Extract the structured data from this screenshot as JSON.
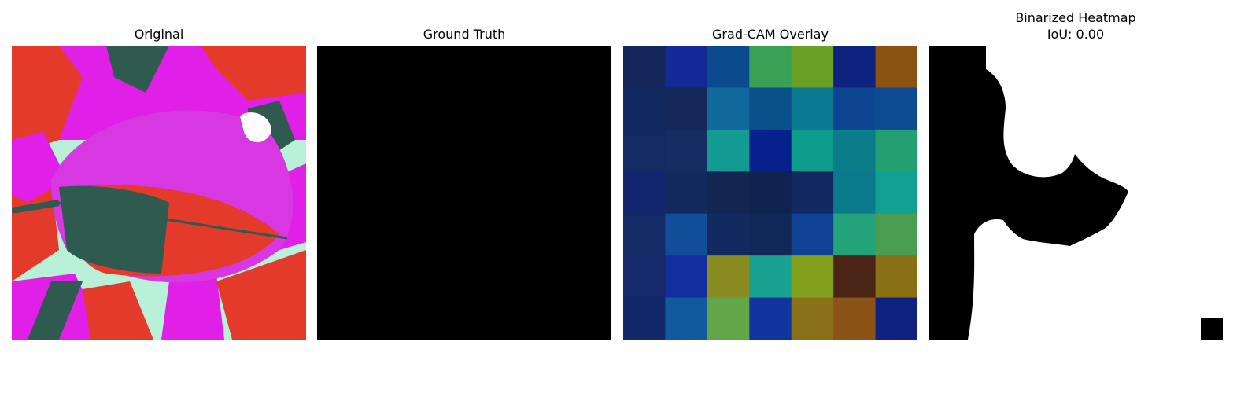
{
  "panels": {
    "original": {
      "title": "Original"
    },
    "ground_truth": {
      "title": "Ground Truth"
    },
    "gradcam": {
      "title": "Grad-CAM Overlay",
      "grid_colors": [
        [
          "#14275a",
          "#122996",
          "#0c4a8e",
          "#38a153",
          "#6aa124",
          "#0e2280",
          "#8a5312"
        ],
        [
          "#132a60",
          "#14285a",
          "#11689a",
          "#0b528c",
          "#0a7890",
          "#0e4592",
          "#0e4b92"
        ],
        [
          "#142a62",
          "#162c63",
          "#119b92",
          "#06218c",
          "#0e9c8a",
          "#0a7c8a",
          "#23a072"
        ],
        [
          "#142670",
          "#132a5e",
          "#112650",
          "#0e2350",
          "#112860",
          "#0b7a8c",
          "#12a092"
        ],
        [
          "#142a66",
          "#124d9a",
          "#122a60",
          "#122858",
          "#0f4292",
          "#24a37a",
          "#4b9e50"
        ],
        [
          "#14286a",
          "#132e9e",
          "#8a8c22",
          "#18a090",
          "#82a01c",
          "#4a2414",
          "#8a7014"
        ],
        [
          "#132868",
          "#125a9e",
          "#62a64a",
          "#1234a0",
          "#8a7018",
          "#8a5416",
          "#0f2280"
        ]
      ]
    },
    "binarized": {
      "title_line1": "Binarized Heatmap",
      "title_line2": "IoU: 0.00"
    }
  },
  "colors": {
    "background": "#ffffff",
    "mask_on": "#000000",
    "mask_off": "#ffffff"
  }
}
